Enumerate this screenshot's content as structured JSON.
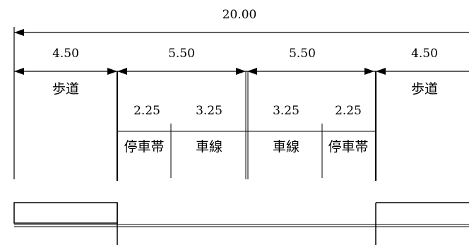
{
  "diagram": {
    "total_width": "20.00",
    "sections": [
      {
        "width": "4.50",
        "label": "歩道"
      },
      {
        "width": "5.50"
      },
      {
        "width": "5.50"
      },
      {
        "width": "4.50",
        "label": "歩道"
      }
    ],
    "lanes": [
      {
        "width": "2.25",
        "label": "停車帯"
      },
      {
        "width": "3.25",
        "label": "車線"
      },
      {
        "width": "3.25",
        "label": "車線"
      },
      {
        "width": "2.25",
        "label": "停車帯"
      }
    ]
  }
}
